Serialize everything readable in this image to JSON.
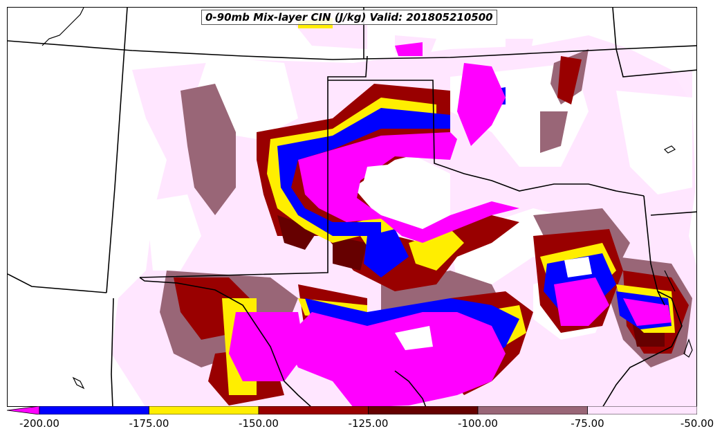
{
  "title": "0-90mb Mix-layer CIN (J/kg) Valid: 201805210500",
  "colorbar": {
    "extend": "min",
    "bins": [
      {
        "from": -200,
        "to": -175,
        "color": "#0000ff"
      },
      {
        "from": -175,
        "to": -150,
        "color": "#ffee00"
      },
      {
        "from": -150,
        "to": -125,
        "color": "#990000"
      },
      {
        "from": -125,
        "to": -100,
        "color": "#660000"
      },
      {
        "from": -100,
        "to": -75,
        "color": "#996677"
      },
      {
        "from": -75,
        "to": -50,
        "color": "#ffe6ff"
      }
    ],
    "below_min_color": "#ff00ff",
    "tick_labels": [
      "-200.00",
      "-175.00",
      "-150.00",
      "-125.00",
      "-100.00",
      "-75.00",
      "-50.00"
    ]
  },
  "colors": {
    "lt_50_to_75": "#ffe6ff",
    "lt_75_to_100": "#996677",
    "lt_100_to_125": "#660000",
    "lt_125_to_150": "#990000",
    "lt_150_to_175": "#ffee00",
    "lt_175_to_200": "#0000ff",
    "lt_200": "#ff00ff",
    "boundary": "#000000"
  }
}
